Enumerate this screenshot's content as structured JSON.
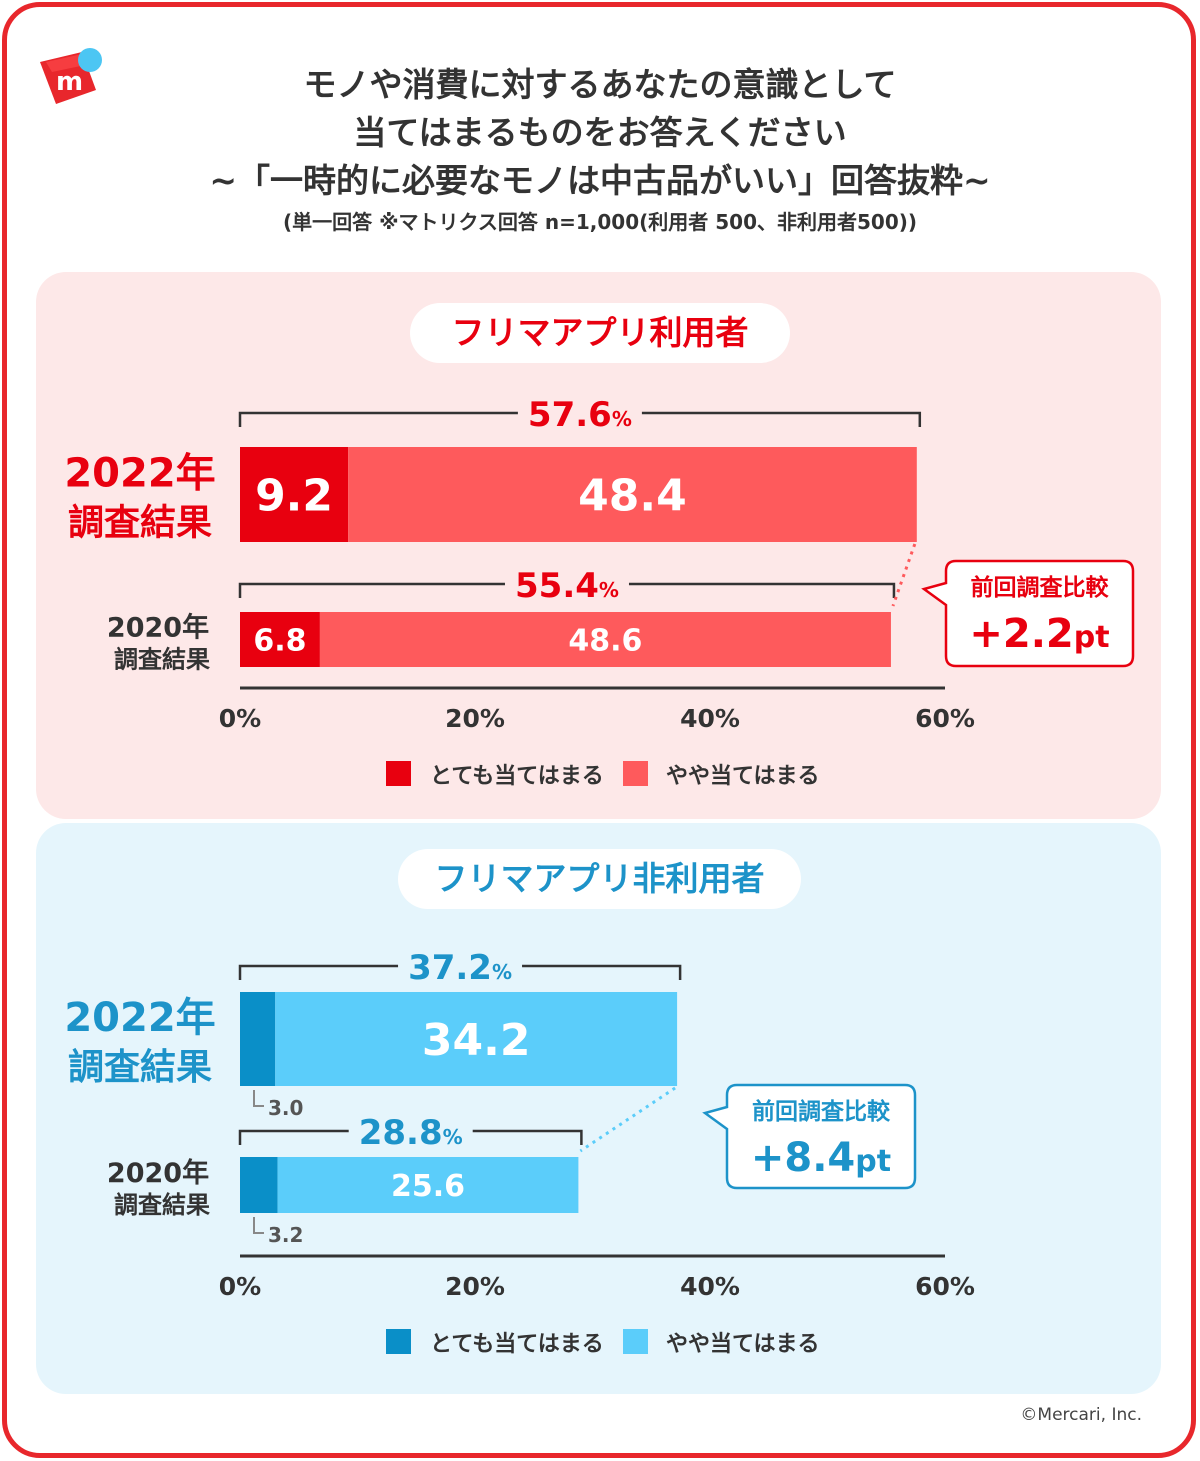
{
  "header": {
    "title_lines": [
      "モノや消費に対するあなたの意識として",
      "当てはまるものをお答えください",
      "~「一時的に必要なモノは中古品がいい」回答抜粋~"
    ],
    "note": "(単一回答 ※マトリクス回答 n=1,000(利用者 500、非利用者500))"
  },
  "brand": {
    "logo_icon": "mercari-logo-icon",
    "logo_letter": "m"
  },
  "colors": {
    "frame": "#e8272c",
    "users_strong": "#e8000f",
    "users_light": "#fe5a5c",
    "users_text": "#e8000f",
    "nonusers_strong": "#0a8fc8",
    "nonusers_light": "#5bcdfa",
    "nonusers_text": "#1d93c9"
  },
  "chart_data": [
    {
      "type": "bar",
      "orientation": "horizontal",
      "stacked": true,
      "title": "フリマアプリ利用者",
      "categories": [
        "2022年調査結果",
        "2020年調査結果"
      ],
      "series": [
        {
          "name": "とても当てはまる",
          "values": [
            9.2,
            6.8
          ]
        },
        {
          "name": "やや当てはまる",
          "values": [
            48.4,
            48.6
          ]
        }
      ],
      "totals": [
        "57.6",
        "55.4"
      ],
      "total_unit": "%",
      "xlim": [
        0,
        60
      ],
      "x_ticks": [
        "0%",
        "20%",
        "40%",
        "60%"
      ],
      "legend": [
        "とても当てはまる",
        "やや当てはまる"
      ],
      "legend_position": "bottom",
      "comparison": {
        "label": "前回調査比較",
        "value": "+2.2",
        "unit": "pt"
      }
    },
    {
      "type": "bar",
      "orientation": "horizontal",
      "stacked": true,
      "title": "フリマアプリ非利用者",
      "categories": [
        "2022年調査結果",
        "2020年調査結果"
      ],
      "series": [
        {
          "name": "とても当てはまる",
          "values": [
            3.0,
            3.2
          ]
        },
        {
          "name": "やや当てはまる",
          "values": [
            34.2,
            25.6
          ]
        }
      ],
      "totals": [
        "37.2",
        "28.8"
      ],
      "total_unit": "%",
      "xlim": [
        0,
        60
      ],
      "x_ticks": [
        "0%",
        "20%",
        "40%",
        "60%"
      ],
      "legend": [
        "とても当てはまる",
        "やや当てはまる"
      ],
      "legend_position": "bottom",
      "comparison": {
        "label": "前回調査比較",
        "value": "+8.4",
        "unit": "pt"
      }
    }
  ],
  "row_labels": {
    "r2022_line1": "2022年",
    "r2022_line2": "調査結果",
    "r2020_line1": "2020年",
    "r2020_line2": "調査結果"
  },
  "footer": {
    "copyright": "©Mercari, Inc."
  }
}
